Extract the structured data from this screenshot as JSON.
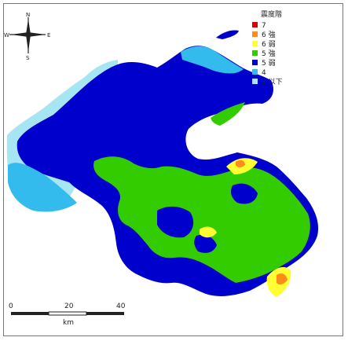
{
  "legend": {
    "title": "震度階",
    "items": [
      {
        "label": "7",
        "color": "#e00000"
      },
      {
        "label": "6 強",
        "color": "#ff8c1a"
      },
      {
        "label": "6 弱",
        "color": "#ffff33"
      },
      {
        "label": "5 強",
        "color": "#33cc00"
      },
      {
        "label": "5 弱",
        "color": "#0000cc"
      },
      {
        "label": "4",
        "color": "#33bbee"
      },
      {
        "label": "3 以下",
        "color": "#a6e6f2"
      }
    ]
  },
  "compass": {
    "north": "N",
    "south": "S",
    "east": "E",
    "west": "W"
  },
  "scale_bar": {
    "ticks": [
      "0",
      "20",
      "40"
    ],
    "unit": "km"
  }
}
